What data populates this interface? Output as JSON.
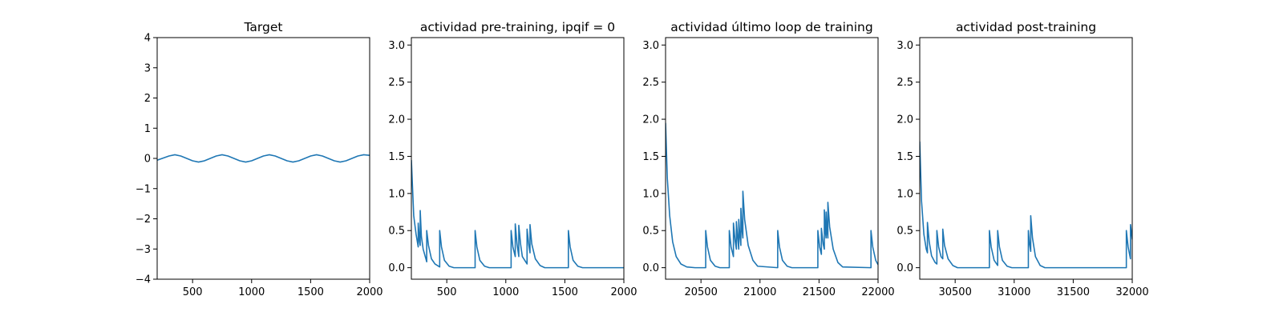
{
  "chart_data": [
    {
      "type": "line",
      "title": "Target",
      "xlim": [
        200,
        2000
      ],
      "ylim": [
        -4,
        4
      ],
      "xticks": [
        500,
        1000,
        1500,
        2000
      ],
      "xtick_labels": [
        "500",
        "1000",
        "1500",
        "2000"
      ],
      "yticks": [
        -4,
        -3,
        -2,
        -1,
        0,
        1,
        2,
        3,
        4
      ],
      "ytick_labels": [
        "−4",
        "−3",
        "−2",
        "−1",
        "0",
        "1",
        "2",
        "3",
        "4"
      ],
      "series": [
        {
          "color": "#1f77b4",
          "x": [
            200,
            250,
            300,
            350,
            400,
            450,
            500,
            550,
            600,
            650,
            700,
            750,
            800,
            850,
            900,
            950,
            1000,
            1050,
            1100,
            1150,
            1200,
            1250,
            1300,
            1350,
            1400,
            1450,
            1500,
            1550,
            1600,
            1650,
            1700,
            1750,
            1800,
            1850,
            1900,
            1950,
            2000
          ],
          "y": [
            -0.06,
            0.01,
            0.08,
            0.12,
            0.08,
            0.0,
            -0.08,
            -0.12,
            -0.08,
            0.0,
            0.08,
            0.12,
            0.08,
            0.0,
            -0.08,
            -0.12,
            -0.08,
            0.0,
            0.08,
            0.12,
            0.08,
            0.0,
            -0.08,
            -0.12,
            -0.08,
            0.0,
            0.08,
            0.12,
            0.08,
            0.0,
            -0.08,
            -0.12,
            -0.08,
            0.0,
            0.08,
            0.12,
            0.1
          ]
        }
      ]
    },
    {
      "type": "line",
      "title": "actividad pre-training, ipqif = 0",
      "xlim": [
        200,
        2000
      ],
      "ylim": [
        -0.155,
        3.1
      ],
      "xticks": [
        500,
        1000,
        1500,
        2000
      ],
      "xtick_labels": [
        "500",
        "1000",
        "1500",
        "2000"
      ],
      "yticks": [
        0.0,
        0.5,
        1.0,
        1.5,
        2.0,
        2.5,
        3.0
      ],
      "ytick_labels": [
        "0.0",
        "0.5",
        "1.0",
        "1.5",
        "2.0",
        "2.5",
        "3.0"
      ],
      "series": [
        {
          "color": "#1f77b4",
          "x": [
            200,
            220,
            240,
            258,
            258,
            270,
            275,
            275,
            285,
            300,
            330,
            330,
            345,
            370,
            400,
            440,
            440,
            455,
            480,
            520,
            560,
            740,
            740,
            755,
            780,
            820,
            860,
            1045,
            1045,
            1060,
            1080,
            1080,
            1095,
            1110,
            1110,
            1125,
            1140,
            1180,
            1180,
            1195,
            1205,
            1205,
            1220,
            1250,
            1290,
            1330,
            1530,
            1530,
            1545,
            1570,
            1610,
            1650,
            2000
          ],
          "y": [
            1.45,
            0.7,
            0.45,
            0.28,
            0.6,
            0.35,
            0.3,
            0.77,
            0.42,
            0.25,
            0.08,
            0.5,
            0.3,
            0.12,
            0.05,
            0.01,
            0.5,
            0.28,
            0.1,
            0.02,
            0.0,
            0.0,
            0.5,
            0.28,
            0.1,
            0.02,
            0.0,
            0.0,
            0.5,
            0.28,
            0.15,
            0.59,
            0.32,
            0.15,
            0.57,
            0.32,
            0.15,
            0.05,
            0.52,
            0.3,
            0.2,
            0.58,
            0.32,
            0.12,
            0.03,
            0.0,
            0.0,
            0.5,
            0.28,
            0.1,
            0.02,
            0.0,
            0.0
          ]
        }
      ]
    },
    {
      "type": "line",
      "title": "actividad último loop de training",
      "xlim": [
        20200,
        22000
      ],
      "ylim": [
        -0.155,
        3.1
      ],
      "xticks": [
        20500,
        21000,
        21500,
        22000
      ],
      "xtick_labels": [
        "20500",
        "21000",
        "21500",
        "22000"
      ],
      "yticks": [
        0.0,
        0.5,
        1.0,
        1.5,
        2.0,
        2.5,
        3.0
      ],
      "ytick_labels": [
        "0.0",
        "0.5",
        "1.0",
        "1.5",
        "2.0",
        "2.5",
        "3.0"
      ],
      "series": [
        {
          "color": "#1f77b4",
          "x": [
            20200,
            20215,
            20235,
            20260,
            20290,
            20330,
            20380,
            20450,
            20540,
            20540,
            20555,
            20580,
            20620,
            20660,
            20740,
            20740,
            20755,
            20775,
            20775,
            20790,
            20800,
            20800,
            20812,
            20820,
            20820,
            20830,
            20838,
            20838,
            20848,
            20855,
            20855,
            20870,
            20900,
            20940,
            20980,
            21150,
            21150,
            21165,
            21190,
            21230,
            21270,
            21490,
            21490,
            21505,
            21520,
            21520,
            21535,
            21545,
            21545,
            21553,
            21560,
            21560,
            21568,
            21575,
            21575,
            21590,
            21620,
            21660,
            21700,
            21940,
            21940,
            21955,
            21980,
            22000
          ],
          "y": [
            1.95,
            1.2,
            0.7,
            0.35,
            0.15,
            0.05,
            0.01,
            0.0,
            0.0,
            0.5,
            0.28,
            0.1,
            0.02,
            0.0,
            0.0,
            0.5,
            0.28,
            0.15,
            0.6,
            0.35,
            0.25,
            0.62,
            0.38,
            0.25,
            0.65,
            0.42,
            0.3,
            0.8,
            0.5,
            0.4,
            1.03,
            0.65,
            0.3,
            0.1,
            0.02,
            0.0,
            0.5,
            0.28,
            0.1,
            0.02,
            0.0,
            0.0,
            0.5,
            0.28,
            0.18,
            0.53,
            0.32,
            0.25,
            0.78,
            0.5,
            0.4,
            0.75,
            0.5,
            0.4,
            0.88,
            0.55,
            0.25,
            0.07,
            0.01,
            0.0,
            0.5,
            0.28,
            0.1,
            0.04
          ]
        }
      ]
    },
    {
      "type": "line",
      "title": "actividad post-training",
      "xlim": [
        30200,
        32000
      ],
      "ylim": [
        -0.155,
        3.1
      ],
      "xticks": [
        30500,
        31000,
        31500,
        32000
      ],
      "xtick_labels": [
        "30500",
        "31000",
        "31500",
        "32000"
      ],
      "yticks": [
        0.0,
        0.5,
        1.0,
        1.5,
        2.0,
        2.5,
        3.0
      ],
      "ytick_labels": [
        "0.0",
        "0.5",
        "1.0",
        "1.5",
        "2.0",
        "2.5",
        "3.0"
      ],
      "series": [
        {
          "color": "#1f77b4",
          "x": [
            30200,
            30215,
            30235,
            30255,
            30265,
            30265,
            30280,
            30300,
            30330,
            30345,
            30345,
            30360,
            30380,
            30395,
            30395,
            30410,
            30440,
            30480,
            30520,
            30790,
            30790,
            30805,
            30830,
            30860,
            30860,
            30875,
            30900,
            30940,
            30980,
            31120,
            31120,
            31130,
            31140,
            31140,
            31155,
            31180,
            31220,
            31260,
            31950,
            31950,
            31965,
            31985,
            31985,
            32000
          ],
          "y": [
            1.7,
            0.9,
            0.45,
            0.25,
            0.2,
            0.61,
            0.35,
            0.16,
            0.07,
            0.05,
            0.5,
            0.28,
            0.15,
            0.12,
            0.52,
            0.3,
            0.12,
            0.03,
            0.0,
            0.0,
            0.5,
            0.28,
            0.1,
            0.03,
            0.5,
            0.28,
            0.1,
            0.02,
            0.0,
            0.0,
            0.5,
            0.32,
            0.22,
            0.7,
            0.4,
            0.15,
            0.03,
            0.0,
            0.0,
            0.5,
            0.28,
            0.12,
            0.58,
            0.38
          ]
        }
      ]
    }
  ]
}
